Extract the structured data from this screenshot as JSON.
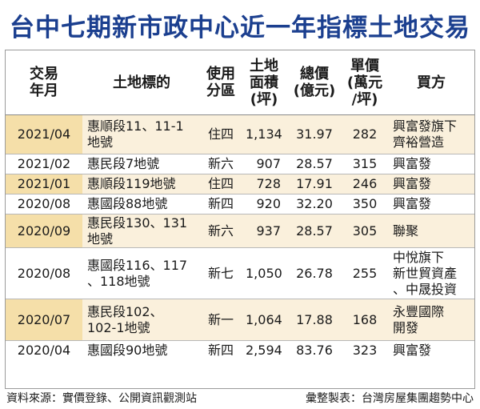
{
  "title": "台中七期新市政中心近一年指標土地交易",
  "headers": {
    "date": [
      "交易",
      "年月"
    ],
    "plot": [
      "土地標的"
    ],
    "zone": [
      "使用",
      "分區"
    ],
    "area": [
      "土地",
      "面積",
      "(坪)"
    ],
    "total": [
      "總價",
      "(億元)"
    ],
    "unit": [
      "單價",
      "(萬元",
      "/坪)"
    ],
    "buyer": [
      "買方"
    ]
  },
  "rows": [
    {
      "date": "2021/04",
      "plot": [
        "惠順段11、11-1",
        "地號"
      ],
      "zone": "住四",
      "area": "1,134",
      "total": "31.97",
      "unit": "282",
      "buyer": [
        "興富發旗下",
        "齊裕營造"
      ],
      "highlight": true
    },
    {
      "date": "2021/02",
      "plot": [
        "惠民段7地號"
      ],
      "zone": "新六",
      "area": "907",
      "total": "28.57",
      "unit": "315",
      "buyer": [
        "興富發"
      ],
      "highlight": false
    },
    {
      "date": "2021/01",
      "plot": [
        "惠順段119地號"
      ],
      "zone": "住四",
      "area": "728",
      "total": "17.91",
      "unit": "246",
      "buyer": [
        "興富發"
      ],
      "highlight": true
    },
    {
      "date": "2020/08",
      "plot": [
        "惠國段88地號"
      ],
      "zone": "新四",
      "area": "920",
      "total": "32.20",
      "unit": "350",
      "buyer": [
        "興富發"
      ],
      "highlight": false
    },
    {
      "date": "2020/09",
      "plot": [
        "惠民段130、131",
        "地號"
      ],
      "zone": "新六",
      "area": "937",
      "total": "28.57",
      "unit": "305",
      "buyer": [
        "聯聚"
      ],
      "highlight": true
    },
    {
      "date": "2020/08",
      "plot": [
        "惠國段116、117",
        "、118地號"
      ],
      "zone": "新七",
      "area": "1,050",
      "total": "26.78",
      "unit": "255",
      "buyer": [
        "中悅旗下",
        "新世貿資產",
        "、中晟投資"
      ],
      "highlight": false
    },
    {
      "date": "2020/07",
      "plot": [
        "惠民段102、",
        "102-1地號"
      ],
      "zone": "新一",
      "area": "1,064",
      "total": "17.88",
      "unit": "168",
      "buyer": [
        "永豐國際",
        "開發"
      ],
      "highlight": true
    },
    {
      "date": "2020/04",
      "plot": [
        "惠國段90地號"
      ],
      "zone": "新四",
      "area": "2,594",
      "total": "83.76",
      "unit": "323",
      "buyer": [
        "興富發"
      ],
      "highlight": false
    }
  ],
  "footer": {
    "source": "資料來源：實價登錄、公開資訊觀測站",
    "credit": "彙整製表：台灣房屋集團趨勢中心"
  },
  "colors": {
    "title": "#1b3f8f",
    "row_highlight": "#faf0dc",
    "date_highlight": "#f5dfa9"
  }
}
